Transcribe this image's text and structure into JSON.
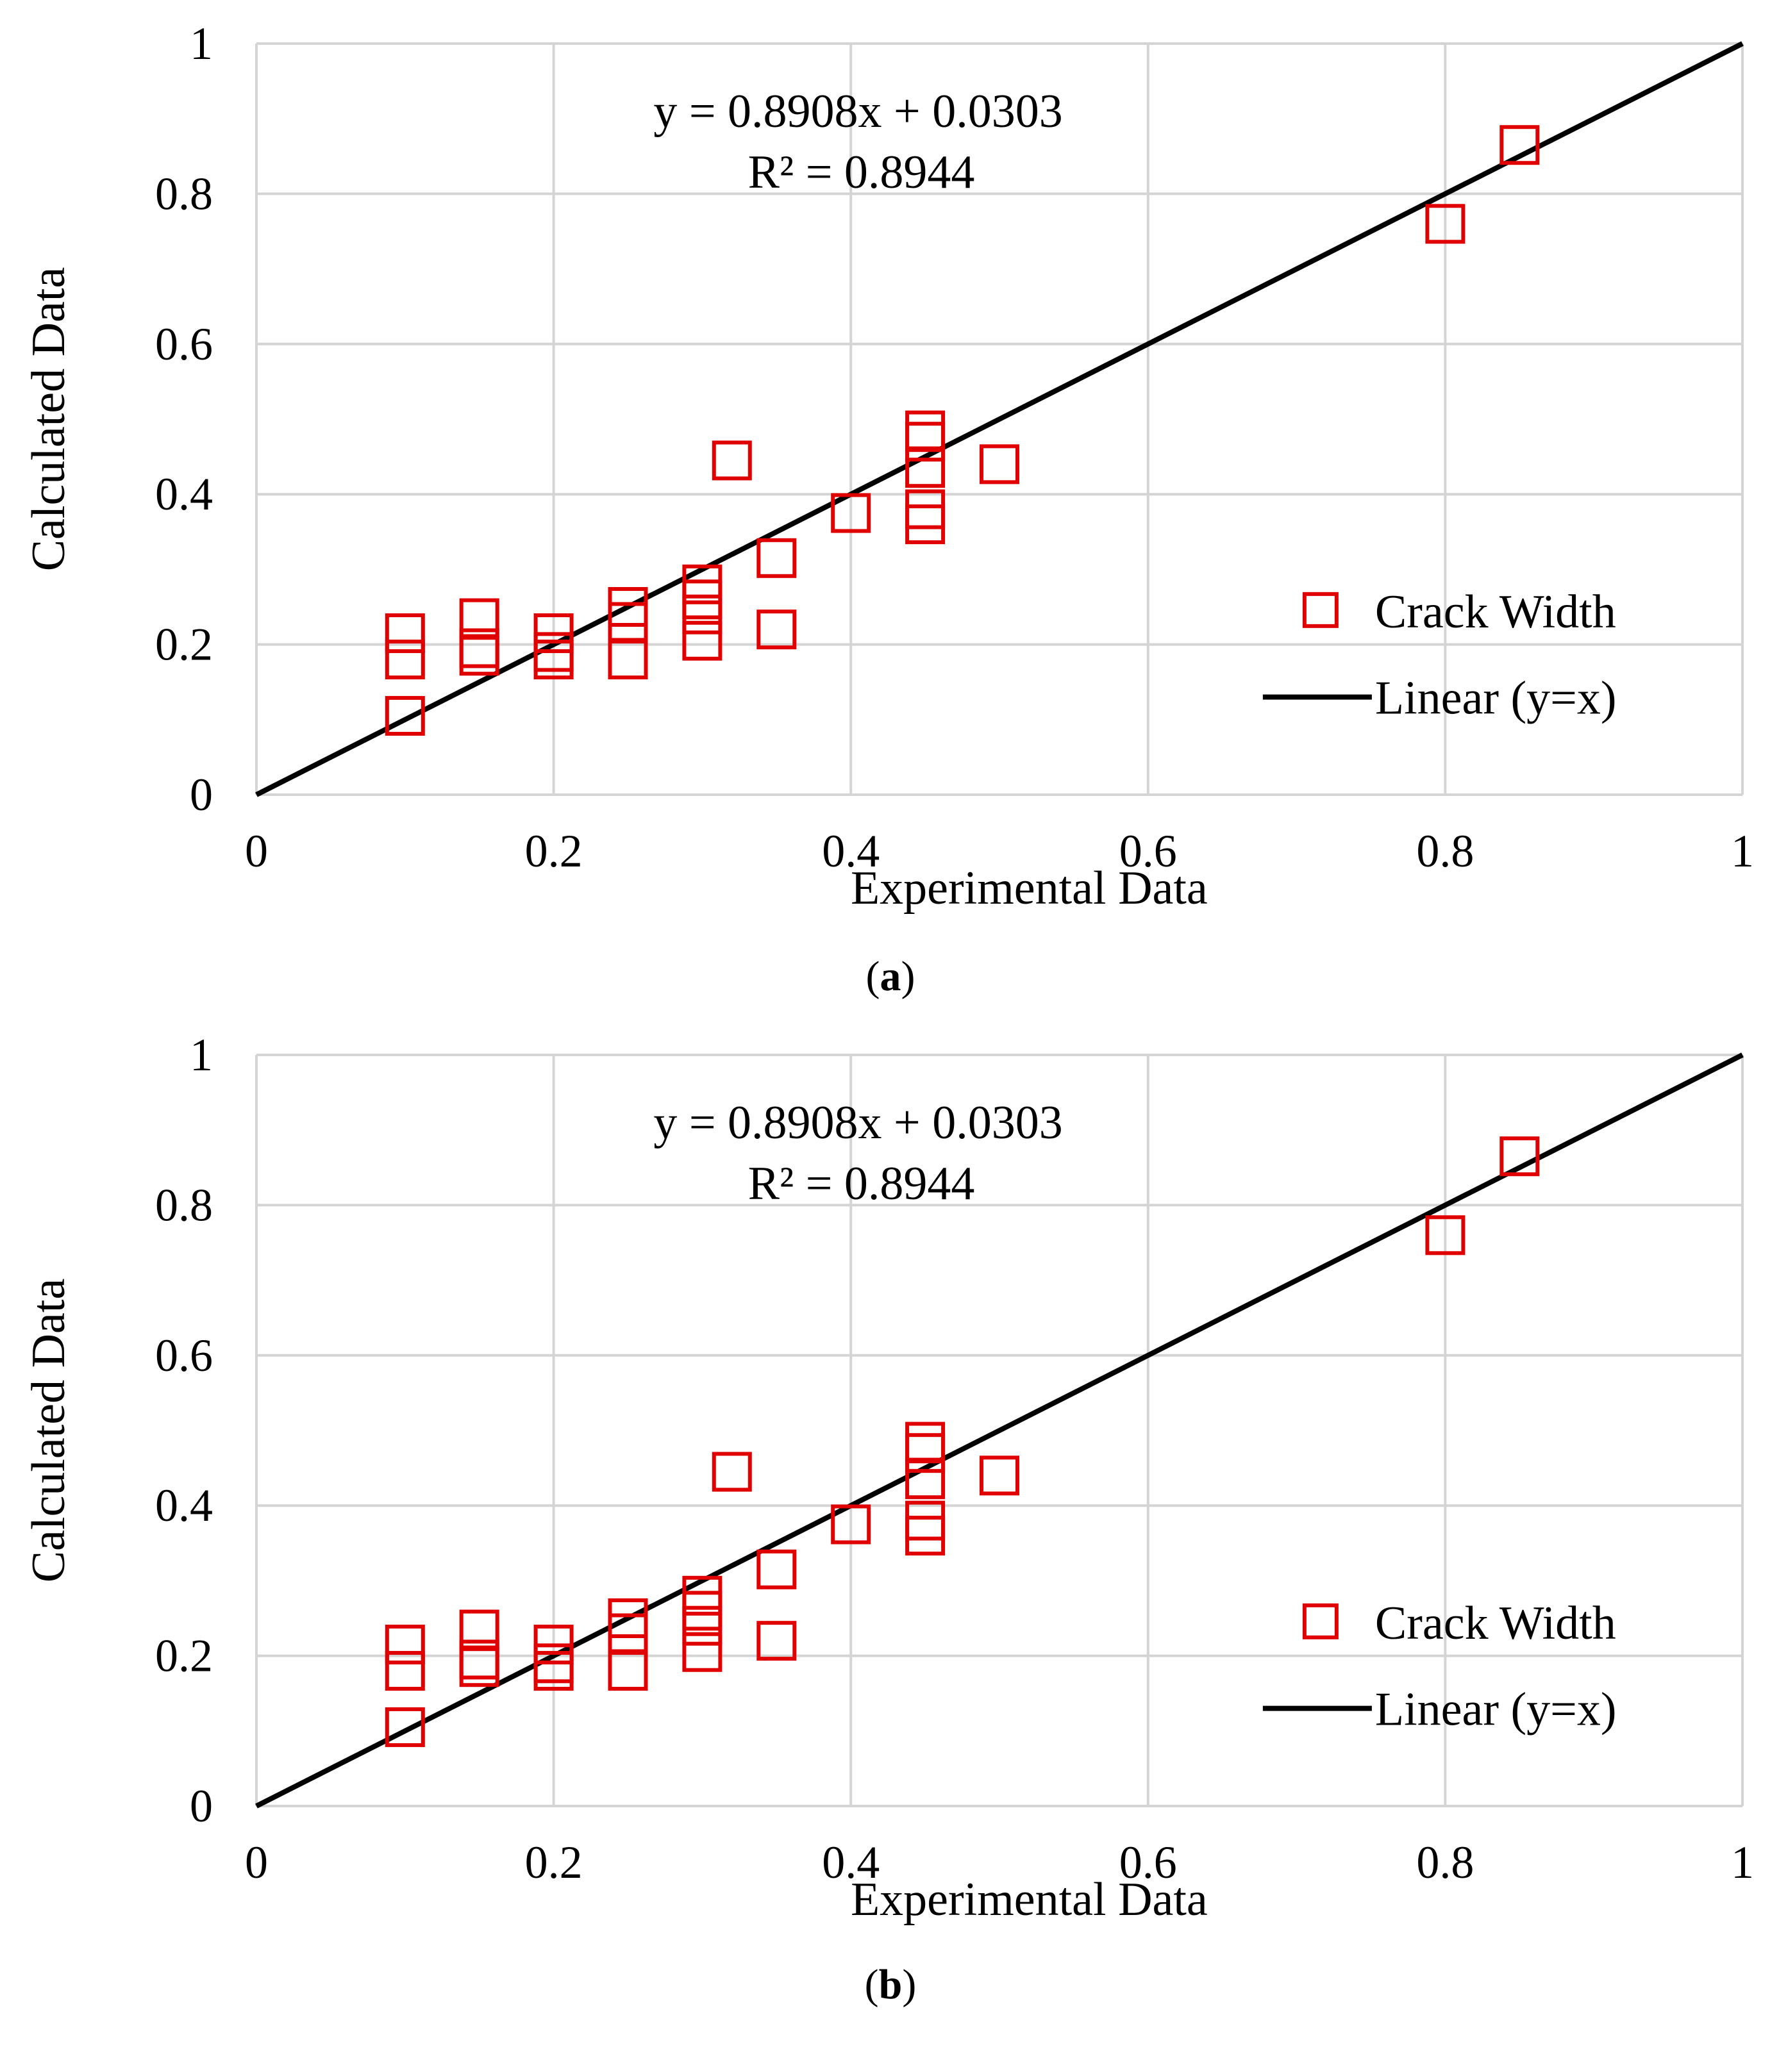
{
  "chart_data": [
    {
      "type": "scatter",
      "panel_label": "a",
      "title": "",
      "xlabel": "Experimental Data",
      "ylabel": "Calculated Data",
      "xlim": [
        0,
        1
      ],
      "ylim": [
        0,
        1
      ],
      "xticks": [
        "0",
        "0.2",
        "0.4",
        "0.6",
        "0.8",
        "1"
      ],
      "yticks": [
        "0",
        "0.2",
        "0.4",
        "0.6",
        "0.8",
        "1"
      ],
      "grid": true,
      "legend_position": "right",
      "annotation": {
        "equation": "y = 0.8908x + 0.0303",
        "r_squared": "R² = 0.8944"
      },
      "series": [
        {
          "name": "Crack Width",
          "kind": "scatter",
          "marker": "open-square",
          "color": "#e00000",
          "points": [
            [
              0.1,
              0.215
            ],
            [
              0.1,
              0.18
            ],
            [
              0.1,
              0.105
            ],
            [
              0.15,
              0.235
            ],
            [
              0.15,
              0.195
            ],
            [
              0.15,
              0.185
            ],
            [
              0.2,
              0.215
            ],
            [
              0.2,
              0.19
            ],
            [
              0.2,
              0.18
            ],
            [
              0.25,
              0.25
            ],
            [
              0.25,
              0.23
            ],
            [
              0.25,
              0.18
            ],
            [
              0.3,
              0.28
            ],
            [
              0.3,
              0.26
            ],
            [
              0.3,
              0.24
            ],
            [
              0.3,
              0.205
            ],
            [
              0.32,
              0.445
            ],
            [
              0.35,
              0.315
            ],
            [
              0.35,
              0.22
            ],
            [
              0.4,
              0.375
            ],
            [
              0.45,
              0.485
            ],
            [
              0.45,
              0.47
            ],
            [
              0.45,
              0.435
            ],
            [
              0.45,
              0.38
            ],
            [
              0.45,
              0.36
            ],
            [
              0.5,
              0.44
            ],
            [
              0.8,
              0.76
            ],
            [
              0.85,
              0.865
            ]
          ]
        },
        {
          "name": "Linear (y=x)",
          "kind": "line",
          "color": "#000000",
          "x": [
            0,
            1
          ],
          "y": [
            0,
            1
          ]
        }
      ]
    },
    {
      "type": "scatter",
      "panel_label": "b",
      "title": "",
      "xlabel": "Experimental Data",
      "ylabel": "Calculated Data",
      "xlim": [
        0,
        1
      ],
      "ylim": [
        0,
        1
      ],
      "xticks": [
        "0",
        "0.2",
        "0.4",
        "0.6",
        "0.8",
        "1"
      ],
      "yticks": [
        "0",
        "0.2",
        "0.4",
        "0.6",
        "0.8",
        "1"
      ],
      "grid": true,
      "legend_position": "right",
      "annotation": {
        "equation": "y = 0.8908x + 0.0303",
        "r_squared": "R² = 0.8944"
      },
      "series": [
        {
          "name": "Crack Width",
          "kind": "scatter",
          "marker": "open-square",
          "color": "#e00000",
          "points": [
            [
              0.1,
              0.215
            ],
            [
              0.1,
              0.18
            ],
            [
              0.1,
              0.105
            ],
            [
              0.15,
              0.235
            ],
            [
              0.15,
              0.195
            ],
            [
              0.15,
              0.185
            ],
            [
              0.2,
              0.215
            ],
            [
              0.2,
              0.19
            ],
            [
              0.2,
              0.18
            ],
            [
              0.25,
              0.25
            ],
            [
              0.25,
              0.23
            ],
            [
              0.25,
              0.18
            ],
            [
              0.3,
              0.28
            ],
            [
              0.3,
              0.26
            ],
            [
              0.3,
              0.24
            ],
            [
              0.3,
              0.205
            ],
            [
              0.32,
              0.445
            ],
            [
              0.35,
              0.315
            ],
            [
              0.35,
              0.22
            ],
            [
              0.4,
              0.375
            ],
            [
              0.45,
              0.485
            ],
            [
              0.45,
              0.47
            ],
            [
              0.45,
              0.435
            ],
            [
              0.45,
              0.38
            ],
            [
              0.45,
              0.36
            ],
            [
              0.5,
              0.44
            ],
            [
              0.8,
              0.76
            ],
            [
              0.85,
              0.865
            ]
          ]
        },
        {
          "name": "Linear (y=x)",
          "kind": "line",
          "color": "#000000",
          "x": [
            0,
            1
          ],
          "y": [
            0,
            1
          ]
        }
      ]
    }
  ]
}
